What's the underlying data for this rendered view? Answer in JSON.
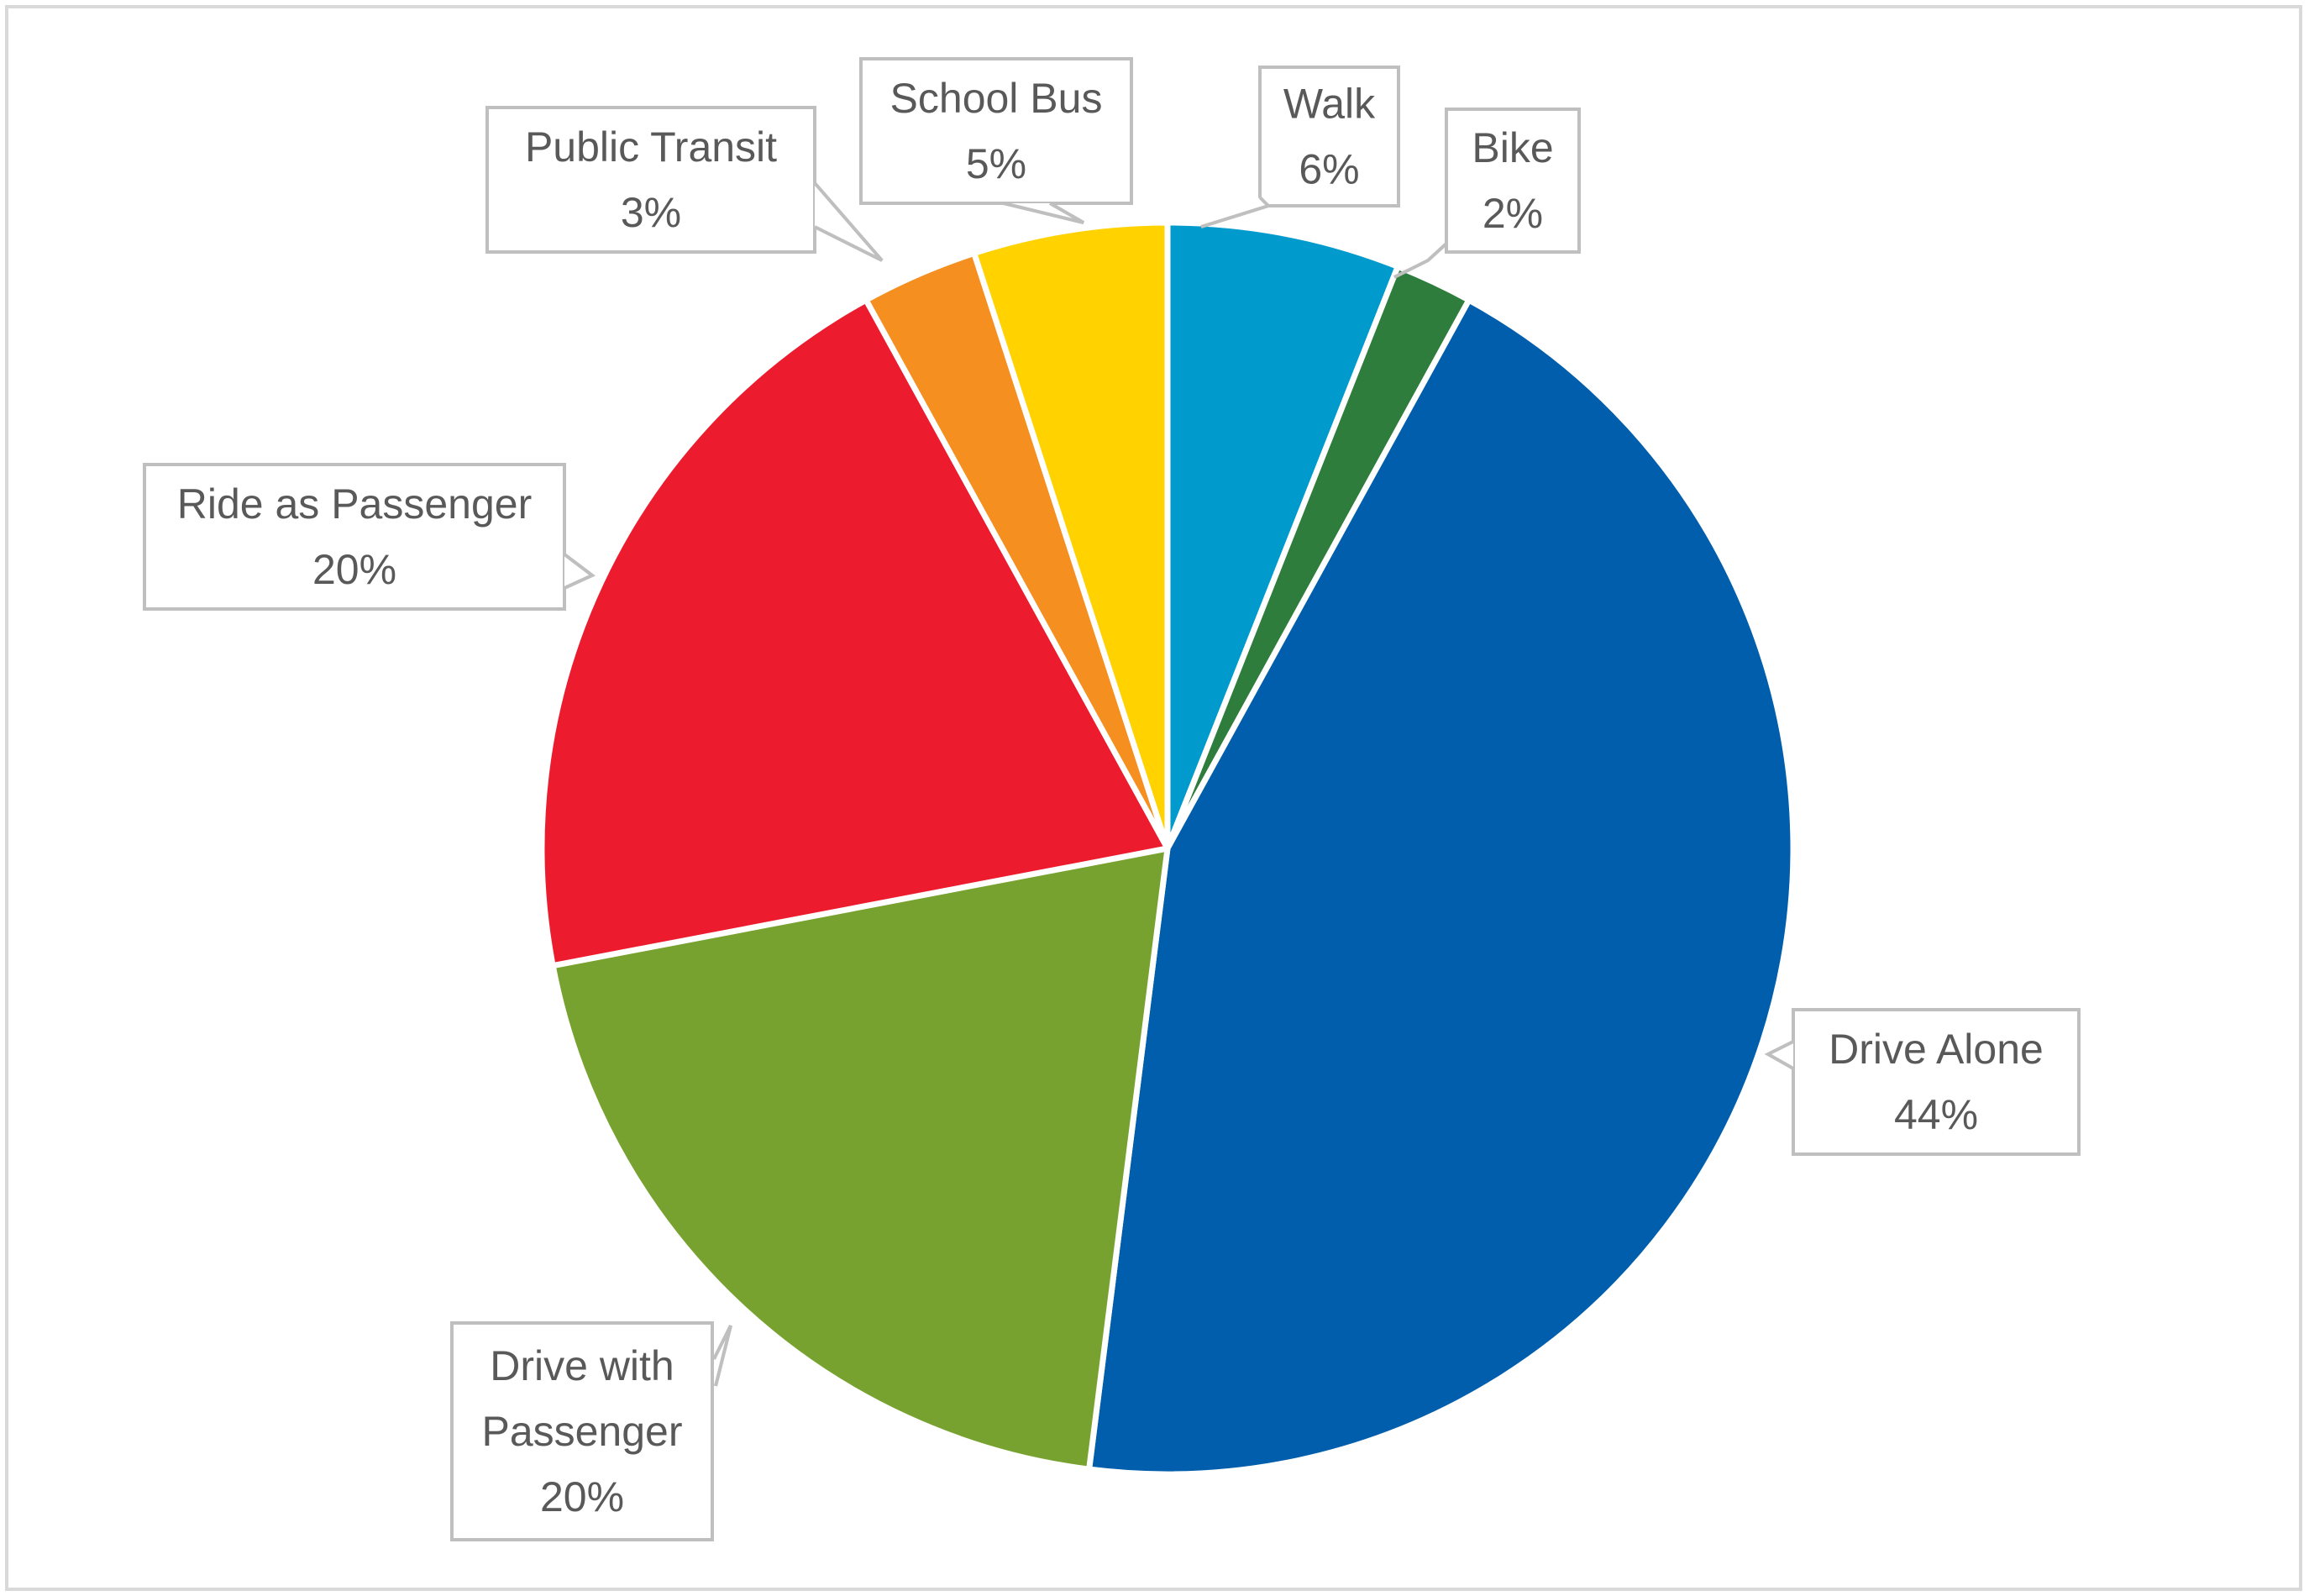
{
  "chart_data": {
    "type": "pie",
    "title": "",
    "slices": [
      {
        "label": "Walk",
        "value": 6,
        "value_label": "6%",
        "color": "#009ACD"
      },
      {
        "label": "Bike",
        "value": 2,
        "value_label": "2%",
        "color": "#2E7D3C"
      },
      {
        "label": "Drive Alone",
        "value": 44,
        "value_label": "44%",
        "color": "#005EAD"
      },
      {
        "label": "Drive with Passenger",
        "value": 20,
        "value_label": "20%",
        "color": "#78A22F"
      },
      {
        "label": "Ride as Passenger",
        "value": 20,
        "value_label": "20%",
        "color": "#EC1C2E"
      },
      {
        "label": "Public Transit",
        "value": 3,
        "value_label": "3%",
        "color": "#F58F1F"
      },
      {
        "label": "School Bus",
        "value": 5,
        "value_label": "5%",
        "color": "#FFD200"
      }
    ],
    "legend": "none"
  }
}
